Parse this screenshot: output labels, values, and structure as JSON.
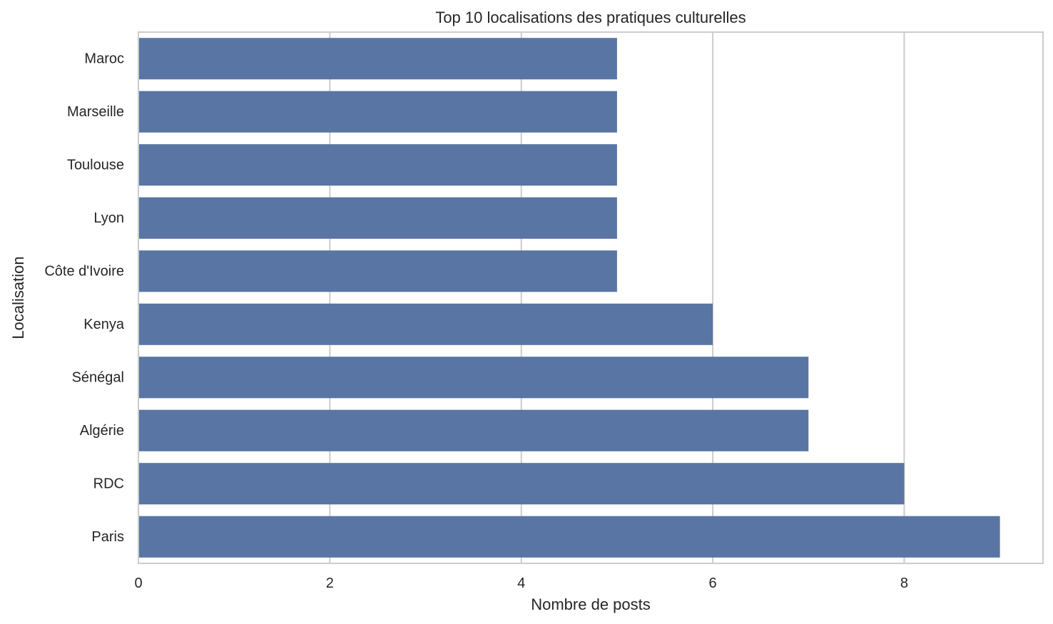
{
  "chart_data": {
    "type": "bar",
    "orientation": "horizontal",
    "title": "Top 10 localisations des pratiques culturelles",
    "xlabel": "Nombre de posts",
    "ylabel": "Localisation",
    "categories": [
      "Maroc",
      "Marseille",
      "Toulouse",
      "Lyon",
      "Côte d'Ivoire",
      "Kenya",
      "Sénégal",
      "Algérie",
      "RDC",
      "Paris"
    ],
    "values": [
      5,
      5,
      5,
      5,
      5,
      6,
      7,
      7,
      8,
      9
    ],
    "xlim": [
      0,
      9.45
    ],
    "xticks": [
      "0",
      "2",
      "4",
      "6",
      "8"
    ],
    "xtick_values": [
      0,
      2,
      4,
      6,
      8
    ],
    "grid": true,
    "bar_color": "#5975a4",
    "grid_color": "#cccccc",
    "frame_color": "#cccccc"
  }
}
